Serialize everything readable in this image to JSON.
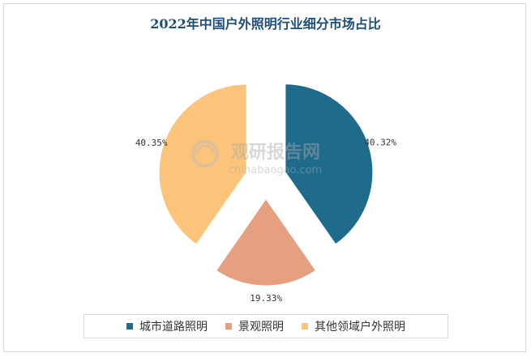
{
  "chart_data": {
    "type": "pie",
    "title": "2022年中国户外照明行业细分市场占比",
    "slices": [
      {
        "label": "城市道路照明",
        "value": 40.32,
        "value_label": "40.32%",
        "color": "#1f6b8c"
      },
      {
        "label": "景观照明",
        "value": 19.33,
        "value_label": "19.33%",
        "color": "#e7a07f"
      },
      {
        "label": "其他领域户外照明",
        "value": 40.35,
        "value_label": "40.35%",
        "color": "#fbc47a"
      }
    ],
    "legend_position": "bottom",
    "exploded": true
  },
  "watermark": {
    "brand": "观研报告网",
    "domain": "chinabaogao.com"
  }
}
